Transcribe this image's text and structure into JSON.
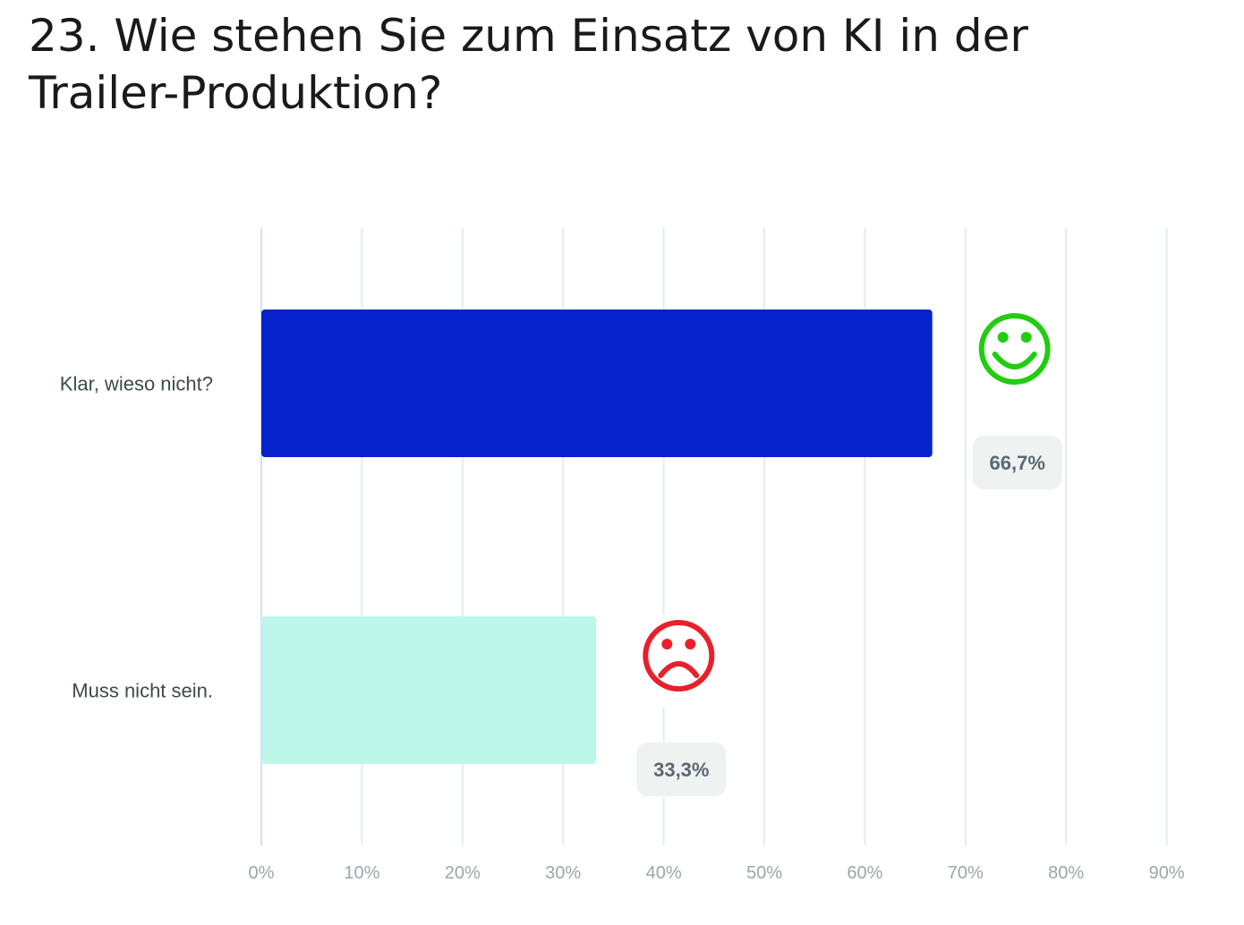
{
  "chart_data": {
    "type": "bar",
    "orientation": "horizontal",
    "title": "23. Wie stehen Sie zum Einsatz von KI in der Trailer-Produktion?",
    "categories": [
      "Klar, wieso nicht?",
      "Muss nicht sein."
    ],
    "values": [
      66.7,
      33.3
    ],
    "data_labels": [
      "66,7%",
      "33,3%"
    ],
    "xlim": [
      0,
      90
    ],
    "x_ticks": [
      "0%",
      "10%",
      "20%",
      "30%",
      "40%",
      "50%",
      "60%",
      "70%",
      "80%",
      "90%"
    ],
    "grid": "vertical",
    "bar_colors": [
      "#0522cc",
      "#bcf7ea"
    ],
    "annotations": [
      {
        "category": "Klar, wieso nicht?",
        "icon": "smiley-face-icon",
        "color": "#22cc11"
      },
      {
        "category": "Muss nicht sein.",
        "icon": "sad-face-icon",
        "color": "#e8202a"
      }
    ]
  }
}
